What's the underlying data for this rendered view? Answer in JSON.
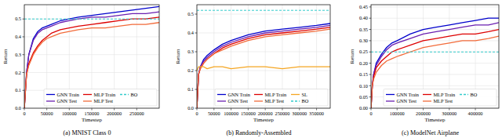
{
  "chart_data": [
    {
      "type": "line",
      "title": "(a) MNIST Class 0",
      "x_label": "Timestep",
      "y_label": "Return",
      "grid": true,
      "legend": "lower right",
      "x": [
        0,
        5000,
        10000,
        20000,
        30000,
        40000,
        50000,
        60000,
        80000,
        100000,
        120000,
        150000,
        180000,
        210000,
        240000,
        270000,
        300000
      ],
      "xlim": [
        0,
        300000
      ],
      "xticks": [
        0,
        50000,
        100000,
        150000,
        200000,
        250000
      ],
      "ylim": [
        0,
        0.58
      ],
      "yticks": [
        {
          "value": 0,
          "label": "0.0"
        },
        0.1,
        0.2,
        0.3,
        0.4,
        0.5
      ],
      "series": [
        {
          "name": "GNN Train",
          "color": "#0000cc",
          "line_style": "solid",
          "values": [
            0,
            0.2,
            0.3,
            0.39,
            0.43,
            0.45,
            0.46,
            0.47,
            0.49,
            0.5,
            0.51,
            0.52,
            0.53,
            0.54,
            0.55,
            0.56,
            0.57
          ]
        },
        {
          "name": "GNN Test",
          "color": "#6a1fb0",
          "line_style": "solid",
          "values": [
            0,
            0.2,
            0.3,
            0.38,
            0.42,
            0.44,
            0.45,
            0.46,
            0.48,
            0.49,
            0.5,
            0.51,
            0.51,
            0.52,
            0.53,
            0.53,
            0.54
          ]
        },
        {
          "name": "MLP Train",
          "color": "#dd0000",
          "line_style": "solid",
          "values": [
            0,
            0.19,
            0.25,
            0.31,
            0.35,
            0.38,
            0.4,
            0.42,
            0.44,
            0.45,
            0.46,
            0.47,
            0.48,
            0.49,
            0.5,
            0.5,
            0.51
          ]
        },
        {
          "name": "MLP Test",
          "color": "#f26b3a",
          "line_style": "solid",
          "values": [
            0,
            0.19,
            0.24,
            0.3,
            0.34,
            0.37,
            0.39,
            0.4,
            0.42,
            0.43,
            0.44,
            0.45,
            0.45,
            0.46,
            0.47,
            0.47,
            0.48
          ]
        },
        {
          "name": "BO",
          "color": "#33cccc",
          "line_style": "dashed",
          "x": [
            0,
            300000
          ],
          "values": [
            0.5,
            0.5
          ]
        }
      ]
    },
    {
      "type": "line",
      "title": "(b) Randomly-Assembled",
      "x_label": "Timestep",
      "y_label": "Return",
      "grid": true,
      "legend": "lower right",
      "x": [
        0,
        5000,
        10000,
        20000,
        30000,
        50000,
        75000,
        100000,
        150000,
        200000,
        250000,
        300000,
        350000,
        390000
      ],
      "xlim": [
        0,
        390000
      ],
      "xticks": [
        0,
        50000,
        100000,
        150000,
        200000,
        250000,
        300000,
        350000
      ],
      "ylim": [
        0,
        0.55
      ],
      "yticks": [
        {
          "value": 0,
          "label": "0.0"
        },
        0.1,
        0.2,
        0.3,
        0.4,
        0.5
      ],
      "series": [
        {
          "name": "GNN Train",
          "color": "#0000cc",
          "line_style": "solid",
          "values": [
            0,
            0.18,
            0.22,
            0.26,
            0.28,
            0.31,
            0.34,
            0.36,
            0.39,
            0.41,
            0.42,
            0.43,
            0.44,
            0.45
          ]
        },
        {
          "name": "GNN Test",
          "color": "#6a1fb0",
          "line_style": "solid",
          "values": [
            0,
            0.18,
            0.22,
            0.25,
            0.27,
            0.3,
            0.33,
            0.35,
            0.38,
            0.4,
            0.41,
            0.42,
            0.43,
            0.44
          ]
        },
        {
          "name": "MLP Train",
          "color": "#dd0000",
          "line_style": "solid",
          "values": [
            0,
            0.18,
            0.21,
            0.24,
            0.26,
            0.29,
            0.32,
            0.34,
            0.37,
            0.39,
            0.4,
            0.41,
            0.42,
            0.43
          ]
        },
        {
          "name": "MLP Test",
          "color": "#f26b3a",
          "line_style": "solid",
          "values": [
            0,
            0.18,
            0.21,
            0.24,
            0.26,
            0.29,
            0.31,
            0.33,
            0.36,
            0.38,
            0.39,
            0.4,
            0.41,
            0.42
          ]
        },
        {
          "name": "SL",
          "color": "#f5a623",
          "line_style": "solid",
          "values": [
            0.2,
            0.22,
            0.22,
            0.22,
            0.21,
            0.22,
            0.22,
            0.21,
            0.22,
            0.22,
            0.21,
            0.22,
            0.22,
            0.22
          ]
        },
        {
          "name": "BO",
          "color": "#33cccc",
          "line_style": "dashed",
          "x": [
            0,
            390000
          ],
          "values": [
            0.52,
            0.52
          ]
        }
      ]
    },
    {
      "type": "line",
      "title": "(c) ModelNet Airplane",
      "x_label": "Timestep",
      "y_label": "Return",
      "grid": true,
      "legend": "lower right",
      "x": [
        0,
        5000,
        10000,
        20000,
        40000,
        60000,
        80000,
        100000,
        150000,
        200000,
        250000,
        300000,
        350000,
        400000,
        450000,
        490000
      ],
      "xlim": [
        0,
        490000
      ],
      "xticks": [
        0,
        100000,
        200000,
        300000,
        400000
      ],
      "ylim": [
        0,
        0.46
      ],
      "yticks": [
        {
          "value": 0,
          "label": "0.00"
        },
        0.05,
        {
          "value": 0.1,
          "label": "0.10"
        },
        0.15,
        {
          "value": 0.2,
          "label": "0.20"
        },
        0.25,
        {
          "value": 0.3,
          "label": "0.30"
        },
        0.35,
        {
          "value": 0.4,
          "label": "0.40"
        },
        0.45
      ],
      "series": [
        {
          "name": "GNN Train",
          "color": "#0000cc",
          "line_style": "solid",
          "values": [
            0,
            0.1,
            0.15,
            0.2,
            0.24,
            0.27,
            0.29,
            0.3,
            0.33,
            0.35,
            0.36,
            0.37,
            0.38,
            0.39,
            0.4,
            0.4
          ]
        },
        {
          "name": "GNN Test",
          "color": "#6a1fb0",
          "line_style": "solid",
          "values": [
            0,
            0.1,
            0.15,
            0.19,
            0.23,
            0.26,
            0.28,
            0.29,
            0.31,
            0.33,
            0.34,
            0.35,
            0.36,
            0.37,
            0.37,
            0.38
          ]
        },
        {
          "name": "MLP Train",
          "color": "#dd0000",
          "line_style": "solid",
          "values": [
            0,
            0.1,
            0.14,
            0.18,
            0.21,
            0.23,
            0.25,
            0.26,
            0.28,
            0.3,
            0.31,
            0.32,
            0.33,
            0.33,
            0.34,
            0.35
          ]
        },
        {
          "name": "MLP Test",
          "color": "#f26b3a",
          "line_style": "solid",
          "values": [
            0,
            0.1,
            0.13,
            0.16,
            0.19,
            0.21,
            0.22,
            0.23,
            0.25,
            0.27,
            0.28,
            0.29,
            0.3,
            0.3,
            0.31,
            0.32
          ]
        },
        {
          "name": "BO",
          "color": "#33cccc",
          "line_style": "dashed",
          "x": [
            0,
            490000
          ],
          "values": [
            0.25,
            0.25
          ]
        }
      ]
    }
  ]
}
